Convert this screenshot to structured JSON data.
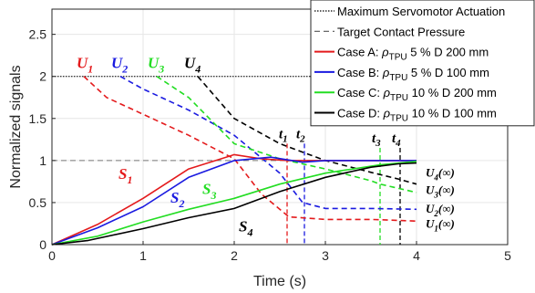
{
  "chart_data": {
    "type": "line",
    "title": "",
    "xlabel": "Time (s)",
    "ylabel": "Normalized signals",
    "xlim": [
      0,
      5
    ],
    "ylim": [
      0,
      2.8
    ],
    "xticks": [
      0,
      1,
      2,
      3,
      4,
      5
    ],
    "yticks": [
      0,
      0.5,
      1,
      1.5,
      2,
      2.5
    ],
    "grid": true,
    "legend_position": "top-right",
    "legend": [
      {
        "label": "Maximum Servomotor Actuation",
        "color": "#000000",
        "style": "dotted"
      },
      {
        "label": "Target Contact Pressure",
        "color": "#555555",
        "style": "dashed"
      },
      {
        "label": "Case A: ",
        "sym": "ρ",
        "sub": "TPU",
        "rest": " 5 % D 200 mm",
        "color": "#e41a1c",
        "style": "solid"
      },
      {
        "label": "Case B: ",
        "sym": "ρ",
        "sub": "TPU",
        "rest": " 5 % D 100 mm",
        "color": "#1a1ae0",
        "style": "solid"
      },
      {
        "label": "Case C: ",
        "sym": "ρ",
        "sub": "TPU",
        "rest": " 10 % D 200 mm",
        "color": "#22dd22",
        "style": "solid"
      },
      {
        "label": "Case D: ",
        "sym": "ρ",
        "sub": "TPU",
        "rest": " 10 % D 100 mm",
        "color": "#000000",
        "style": "solid"
      }
    ],
    "reference_lines": [
      {
        "name": "max-actuation",
        "y": 2,
        "x": [
          0,
          4
        ],
        "color": "#000000",
        "style": "dotted"
      },
      {
        "name": "target-pressure",
        "y": 1,
        "x": [
          0,
          4
        ],
        "color": "#777777",
        "style": "dashed"
      }
    ],
    "series": [
      {
        "name": "U_1",
        "color": "#e41a1c",
        "style": "dashed",
        "x": [
          0.35,
          0.6,
          1.0,
          1.5,
          2.0,
          2.3,
          2.6,
          3.0,
          3.5,
          4.0
        ],
        "y": [
          2.0,
          1.75,
          1.55,
          1.3,
          1.02,
          0.6,
          0.33,
          0.3,
          0.3,
          0.28
        ]
      },
      {
        "name": "U_2",
        "color": "#1a1ae0",
        "style": "dashed",
        "x": [
          0.75,
          1.0,
          1.5,
          2.0,
          2.5,
          2.75,
          3.0,
          3.5,
          4.0
        ],
        "y": [
          2.0,
          1.85,
          1.6,
          1.3,
          0.85,
          0.5,
          0.43,
          0.43,
          0.42
        ]
      },
      {
        "name": "U_3",
        "color": "#22dd22",
        "style": "dashed",
        "x": [
          1.15,
          1.5,
          2.0,
          2.5,
          3.0,
          3.5,
          3.6,
          4.0
        ],
        "y": [
          2.0,
          1.75,
          1.2,
          1.02,
          0.9,
          0.76,
          0.72,
          0.62
        ]
      },
      {
        "name": "U_4",
        "color": "#000000",
        "style": "dashed",
        "x": [
          1.6,
          2.0,
          2.5,
          3.0,
          3.5,
          3.8,
          4.0
        ],
        "y": [
          2.0,
          1.5,
          1.2,
          1.0,
          0.86,
          0.78,
          0.72
        ]
      },
      {
        "name": "S_1",
        "color": "#e41a1c",
        "style": "solid",
        "x": [
          0,
          0.5,
          1.0,
          1.5,
          2.0,
          2.3,
          2.6,
          3.0,
          3.5,
          4.0
        ],
        "y": [
          0,
          0.24,
          0.55,
          0.9,
          1.07,
          1.02,
          1.0,
          1.0,
          1.0,
          1.0
        ]
      },
      {
        "name": "S_2",
        "color": "#1a1ae0",
        "style": "solid",
        "x": [
          0,
          0.5,
          1.0,
          1.5,
          2.0,
          2.4,
          2.75,
          3.0,
          3.5,
          4.0
        ],
        "y": [
          0,
          0.2,
          0.45,
          0.8,
          1.0,
          1.04,
          0.98,
          1.0,
          1.0,
          1.0
        ]
      },
      {
        "name": "S_3",
        "color": "#22dd22",
        "style": "solid",
        "x": [
          0,
          0.5,
          1.0,
          1.5,
          2.0,
          2.5,
          3.0,
          3.6,
          4.0
        ],
        "y": [
          0,
          0.1,
          0.27,
          0.42,
          0.55,
          0.72,
          0.85,
          0.95,
          0.99
        ]
      },
      {
        "name": "S_4",
        "color": "#000000",
        "style": "solid",
        "x": [
          0,
          0.4,
          1.0,
          1.5,
          2.0,
          2.5,
          3.0,
          3.5,
          3.8,
          4.0
        ],
        "y": [
          0,
          0.05,
          0.19,
          0.32,
          0.43,
          0.63,
          0.8,
          0.92,
          0.96,
          0.97
        ]
      }
    ],
    "time_markers": [
      {
        "label": "t",
        "sub": "1",
        "x": 2.58,
        "y_top": 1.2,
        "color": "#e41a1c"
      },
      {
        "label": "t",
        "sub": "2",
        "x": 2.77,
        "y_top": 1.2,
        "color": "#1a1ae0"
      },
      {
        "label": "t",
        "sub": "3",
        "x": 3.6,
        "y_top": 1.15,
        "color": "#22dd22"
      },
      {
        "label": "t",
        "sub": "4",
        "x": 3.82,
        "y_top": 1.15,
        "color": "#000000"
      }
    ],
    "annotations": [
      {
        "label": "U",
        "sub": "1",
        "color": "#e41a1c",
        "x": 0.27,
        "y": 2.1,
        "size": 17
      },
      {
        "label": "U",
        "sub": "2",
        "color": "#1a1ae0",
        "x": 0.65,
        "y": 2.1,
        "size": 17
      },
      {
        "label": "U",
        "sub": "3",
        "color": "#22dd22",
        "x": 1.05,
        "y": 2.1,
        "size": 17
      },
      {
        "label": "U",
        "sub": "4",
        "color": "#000000",
        "x": 1.45,
        "y": 2.1,
        "size": 17
      },
      {
        "label": "S",
        "sub": "1",
        "color": "#e41a1c",
        "x": 0.73,
        "y": 0.78,
        "size": 17
      },
      {
        "label": "S",
        "sub": "2",
        "color": "#1a1ae0",
        "x": 1.3,
        "y": 0.5,
        "size": 17
      },
      {
        "label": "S",
        "sub": "3",
        "color": "#22dd22",
        "x": 1.65,
        "y": 0.6,
        "size": 17
      },
      {
        "label": "S",
        "sub": "4",
        "color": "#000000",
        "x": 2.05,
        "y": 0.16,
        "size": 17
      },
      {
        "label": "U",
        "sub": "4",
        "tail": "(∞)",
        "color": "#000000",
        "x": 4.1,
        "y": 0.81,
        "size": 13
      },
      {
        "label": "U",
        "sub": "3",
        "tail": "(∞)",
        "color": "#000000",
        "x": 4.1,
        "y": 0.6,
        "size": 13
      },
      {
        "label": "U",
        "sub": "2",
        "tail": "(∞)",
        "color": "#000000",
        "x": 4.1,
        "y": 0.38,
        "size": 13
      },
      {
        "label": "U",
        "sub": "1",
        "tail": "(∞)",
        "color": "#000000",
        "x": 4.1,
        "y": 0.2,
        "size": 13
      }
    ]
  }
}
